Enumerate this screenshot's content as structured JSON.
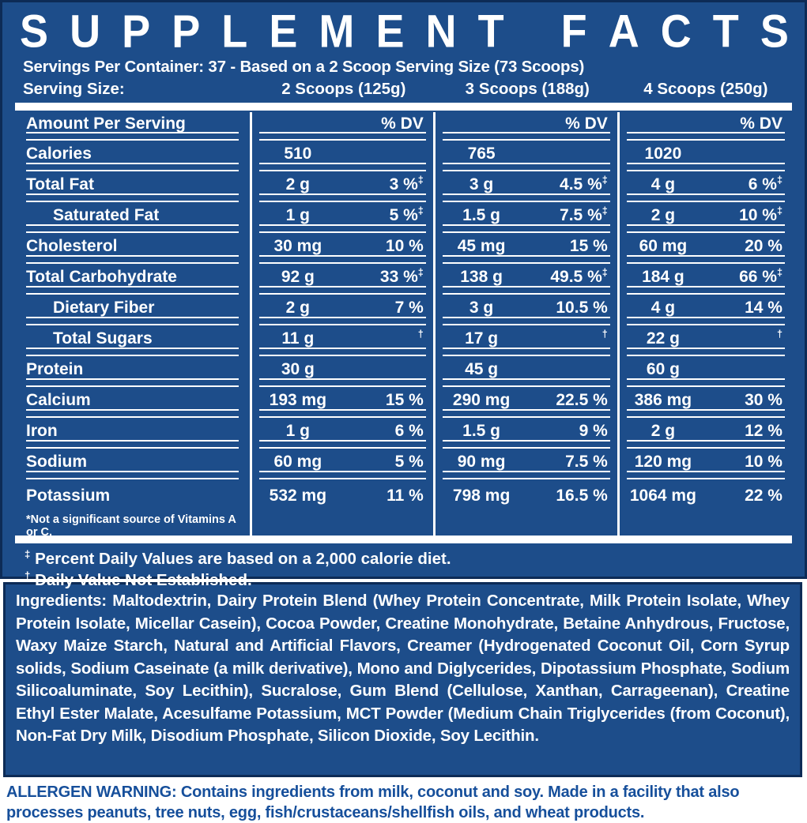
{
  "title": "SUPPLEMENT FACTS",
  "servings_line": "Servings Per Container: 37 - Based on a 2 Scoop Serving Size (73 Scoops)",
  "serving_size_label": "Serving Size:",
  "serving_columns": [
    "2 Scoops (125g)",
    "3 Scoops (188g)",
    "4 Scoops (250g)"
  ],
  "table": {
    "header_label": "Amount Per Serving",
    "dv_header": "% DV",
    "rows": [
      {
        "name": "Calories",
        "indent": false,
        "cols": [
          {
            "amount": "510",
            "dv": "",
            "mark": ""
          },
          {
            "amount": "765",
            "dv": "",
            "mark": ""
          },
          {
            "amount": "1020",
            "dv": "",
            "mark": ""
          }
        ]
      },
      {
        "name": "Total Fat",
        "indent": false,
        "cols": [
          {
            "amount": "2 g",
            "dv": "3 %",
            "mark": "‡"
          },
          {
            "amount": "3 g",
            "dv": "4.5 %",
            "mark": "‡"
          },
          {
            "amount": "4 g",
            "dv": "6 %",
            "mark": "‡"
          }
        ]
      },
      {
        "name": "Saturated Fat",
        "indent": true,
        "cols": [
          {
            "amount": "1 g",
            "dv": "5 %",
            "mark": "‡"
          },
          {
            "amount": "1.5 g",
            "dv": "7.5 %",
            "mark": "‡"
          },
          {
            "amount": "2 g",
            "dv": "10 %",
            "mark": "‡"
          }
        ]
      },
      {
        "name": "Cholesterol",
        "indent": false,
        "cols": [
          {
            "amount": "30 mg",
            "dv": "10 %",
            "mark": ""
          },
          {
            "amount": "45 mg",
            "dv": "15 %",
            "mark": ""
          },
          {
            "amount": "60 mg",
            "dv": "20 %",
            "mark": ""
          }
        ]
      },
      {
        "name": "Total Carbohydrate",
        "indent": false,
        "cols": [
          {
            "amount": "92 g",
            "dv": "33 %",
            "mark": "‡"
          },
          {
            "amount": "138 g",
            "dv": "49.5 %",
            "mark": "‡"
          },
          {
            "amount": "184 g",
            "dv": "66 %",
            "mark": "‡"
          }
        ]
      },
      {
        "name": "Dietary Fiber",
        "indent": true,
        "cols": [
          {
            "amount": "2 g",
            "dv": "7 %",
            "mark": ""
          },
          {
            "amount": "3 g",
            "dv": "10.5 %",
            "mark": ""
          },
          {
            "amount": "4 g",
            "dv": "14 %",
            "mark": ""
          }
        ]
      },
      {
        "name": "Total Sugars",
        "indent": true,
        "cols": [
          {
            "amount": "11 g",
            "dv": "",
            "mark": "†"
          },
          {
            "amount": "17 g",
            "dv": "",
            "mark": "†"
          },
          {
            "amount": "22 g",
            "dv": "",
            "mark": "†"
          }
        ]
      },
      {
        "name": "Protein",
        "indent": false,
        "cols": [
          {
            "amount": "30 g",
            "dv": "",
            "mark": ""
          },
          {
            "amount": "45 g",
            "dv": "",
            "mark": ""
          },
          {
            "amount": "60 g",
            "dv": "",
            "mark": ""
          }
        ]
      },
      {
        "name": "Calcium",
        "indent": false,
        "cols": [
          {
            "amount": "193 mg",
            "dv": "15 %",
            "mark": ""
          },
          {
            "amount": "290 mg",
            "dv": "22.5 %",
            "mark": ""
          },
          {
            "amount": "386 mg",
            "dv": "30 %",
            "mark": ""
          }
        ]
      },
      {
        "name": "Iron",
        "indent": false,
        "cols": [
          {
            "amount": "1 g",
            "dv": "6 %",
            "mark": ""
          },
          {
            "amount": "1.5 g",
            "dv": "9 %",
            "mark": ""
          },
          {
            "amount": "2 g",
            "dv": "12 %",
            "mark": ""
          }
        ]
      },
      {
        "name": "Sodium",
        "indent": false,
        "cols": [
          {
            "amount": "60 mg",
            "dv": "5 %",
            "mark": ""
          },
          {
            "amount": "90 mg",
            "dv": "7.5 %",
            "mark": ""
          },
          {
            "amount": "120 mg",
            "dv": "10 %",
            "mark": ""
          }
        ]
      },
      {
        "name": "Potassium",
        "indent": false,
        "cols": [
          {
            "amount": "532 mg",
            "dv": "11 %",
            "mark": ""
          },
          {
            "amount": "798 mg",
            "dv": "16.5 %",
            "mark": ""
          },
          {
            "amount": "1064 mg",
            "dv": "22 %",
            "mark": ""
          }
        ]
      }
    ],
    "table_footnote": "*Not a significant source of Vitamins A or C."
  },
  "footnotes": [
    {
      "mark": "‡",
      "text": "Percent Daily Values are based on a 2,000 calorie diet."
    },
    {
      "mark": "†",
      "text": "Daily Value Not Established."
    }
  ],
  "ingredients": {
    "label": "Ingredients:",
    "text": "Maltodextrin, Dairy Protein Blend (Whey Protein Concentrate, Milk Protein Isolate, Whey Protein Isolate, Micellar Casein), Cocoa Powder, Creatine Monohydrate, Betaine Anhydrous, Fructose, Waxy Maize Starch, Natural and Artificial Flavors, Creamer (Hydrogenated Coconut Oil, Corn Syrup solids, Sodium Caseinate (a milk derivative), Mono and Diglycerides, Dipotassium Phosphate, Sodium Silicoaluminate, Soy Lecithin), Sucralose, Gum Blend (Cellulose, Xanthan, Carrageenan), Creatine Ethyl Ester Malate, Acesulfame Potassium, MCT Powder (Medium Chain Triglycerides (from Coconut), Non-Fat Dry Milk, Disodium Phosphate, Silicon Dioxide, Soy Lecithin."
  },
  "allergen": {
    "label_bold": "ALLERGEN WARNING: Contains ingredients from milk, coconut and soy.",
    "text": "Made in a facility that also processes peanuts, tree nuts, egg, fish/crustaceans/shellfish oils, and wheat products."
  },
  "colors": {
    "panel_blue": "#1d4d8a",
    "border_navy": "#0d2b56",
    "text_white": "#ffffff",
    "allergen_blue": "#164f9b"
  }
}
